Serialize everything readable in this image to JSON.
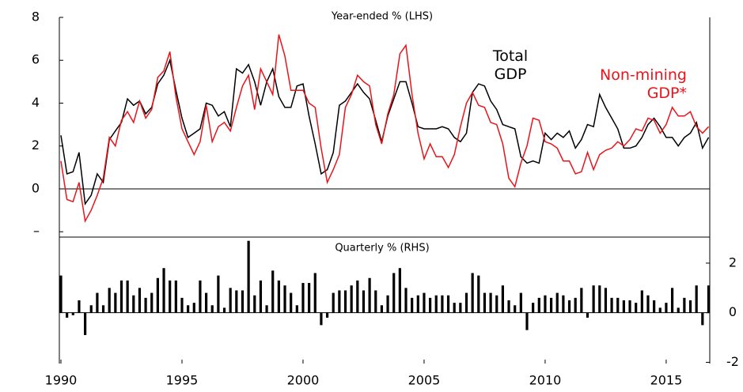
{
  "chart_data": [
    {
      "type": "line",
      "subtitle": "Year-ended % (LHS)",
      "x": [
        1990,
        1990.25,
        1990.5,
        1990.75,
        1991,
        1991.25,
        1991.5,
        1991.75,
        1992,
        1992.25,
        1992.5,
        1992.75,
        1993,
        1993.25,
        1993.5,
        1993.75,
        1994,
        1994.25,
        1994.5,
        1994.75,
        1995,
        1995.25,
        1995.5,
        1995.75,
        1996,
        1996.25,
        1996.5,
        1996.75,
        1997,
        1997.25,
        1997.5,
        1997.75,
        1998,
        1998.25,
        1998.5,
        1998.75,
        1999,
        1999.25,
        1999.5,
        1999.75,
        2000,
        2000.25,
        2000.5,
        2000.75,
        2001,
        2001.25,
        2001.5,
        2001.75,
        2002,
        2002.25,
        2002.5,
        2002.75,
        2003,
        2003.25,
        2003.5,
        2003.75,
        2004,
        2004.25,
        2004.5,
        2004.75,
        2005,
        2005.25,
        2005.5,
        2005.75,
        2006,
        2006.25,
        2006.5,
        2006.75,
        2007,
        2007.25,
        2007.5,
        2007.75,
        2008,
        2008.25,
        2008.5,
        2008.75,
        2009,
        2009.25,
        2009.5,
        2009.75,
        2010,
        2010.25,
        2010.5,
        2010.75,
        2011,
        2011.25,
        2011.5,
        2011.75,
        2012,
        2012.25,
        2012.5,
        2012.75,
        2013,
        2013.25,
        2013.5,
        2013.75,
        2014,
        2014.25,
        2014.5,
        2014.75,
        2015,
        2015.25,
        2015.5,
        2015.75,
        2016,
        2016.25,
        2016.5,
        2016.75
      ],
      "series": [
        {
          "name": "Total GDP",
          "color": "#000000",
          "values": [
            2.5,
            0.7,
            0.8,
            1.7,
            -0.7,
            -0.3,
            0.7,
            0.3,
            2.3,
            2.7,
            3.1,
            4.2,
            3.9,
            4.1,
            3.5,
            3.8,
            4.9,
            5.3,
            6.0,
            4.6,
            3.3,
            2.4,
            2.6,
            2.8,
            4.0,
            3.9,
            3.4,
            3.6,
            2.9,
            5.6,
            5.4,
            5.8,
            5.0,
            3.9,
            5.0,
            5.6,
            4.3,
            3.8,
            3.8,
            4.8,
            4.9,
            3.4,
            2.1,
            0.7,
            0.9,
            1.7,
            3.9,
            4.1,
            4.5,
            4.9,
            4.5,
            4.2,
            3.2,
            2.2,
            3.4,
            4.2,
            5.0,
            5.0,
            4.0,
            2.9,
            2.8,
            2.8,
            2.8,
            2.9,
            2.8,
            2.4,
            2.2,
            2.6,
            4.5,
            4.9,
            4.8,
            4.1,
            3.7,
            3.0,
            2.9,
            2.8,
            1.5,
            1.2,
            1.3,
            1.2,
            2.6,
            2.3,
            2.6,
            2.4,
            2.7,
            1.9,
            2.3,
            3.0,
            2.9,
            4.4,
            3.8,
            3.3,
            2.8,
            1.9,
            1.9,
            2.0,
            2.4,
            3.0,
            3.3,
            2.9,
            2.4,
            2.4,
            2.0,
            2.4,
            2.6,
            3.1,
            1.9,
            2.4
          ]
        },
        {
          "name": "Non-mining GDP*",
          "color": "#e8141b",
          "values": [
            1.3,
            -0.5,
            -0.6,
            0.3,
            -1.5,
            -1.0,
            -0.3,
            0.5,
            2.4,
            2.0,
            3.2,
            3.6,
            3.1,
            4.1,
            3.3,
            3.7,
            5.2,
            5.5,
            6.4,
            4.3,
            2.8,
            2.2,
            1.6,
            2.2,
            3.9,
            2.2,
            2.9,
            3.1,
            2.7,
            3.8,
            4.8,
            5.3,
            3.7,
            5.6,
            5.0,
            4.4,
            7.2,
            6.2,
            4.6,
            4.6,
            4.6,
            4.0,
            3.8,
            1.9,
            0.3,
            0.9,
            1.6,
            3.8,
            4.4,
            5.3,
            5.0,
            4.8,
            3.0,
            2.1,
            3.5,
            4.4,
            6.3,
            6.7,
            4.4,
            2.6,
            1.4,
            2.1,
            1.5,
            1.5,
            1.0,
            1.6,
            2.9,
            4.0,
            4.5,
            3.9,
            3.8,
            3.1,
            3.0,
            2.1,
            0.5,
            0.1,
            1.2,
            2.0,
            3.3,
            3.2,
            2.2,
            2.1,
            1.9,
            1.3,
            1.3,
            0.7,
            0.8,
            1.7,
            0.9,
            1.6,
            1.8,
            1.9,
            2.2,
            2.0,
            2.3,
            2.8,
            2.7,
            3.3,
            3.2,
            2.6,
            3.0,
            3.8,
            3.4,
            3.4,
            3.6,
            2.9,
            2.6,
            2.9
          ]
        }
      ],
      "xlim": [
        1990,
        2016.8
      ],
      "ylim": [
        -2.25,
        8
      ],
      "yticks": [
        {
          "value": -2,
          "label": "–"
        },
        0,
        2,
        4,
        6,
        8
      ]
    },
    {
      "type": "bar",
      "subtitle": "Quarterly % (RHS)",
      "x": [
        1990,
        1990.25,
        1990.5,
        1990.75,
        1991,
        1991.25,
        1991.5,
        1991.75,
        1992,
        1992.25,
        1992.5,
        1992.75,
        1993,
        1993.25,
        1993.5,
        1993.75,
        1994,
        1994.25,
        1994.5,
        1994.75,
        1995,
        1995.25,
        1995.5,
        1995.75,
        1996,
        1996.25,
        1996.5,
        1996.75,
        1997,
        1997.25,
        1997.5,
        1997.75,
        1998,
        1998.25,
        1998.5,
        1998.75,
        1999,
        1999.25,
        1999.5,
        1999.75,
        2000,
        2000.25,
        2000.5,
        2000.75,
        2001,
        2001.25,
        2001.5,
        2001.75,
        2002,
        2002.25,
        2002.5,
        2002.75,
        2003,
        2003.25,
        2003.5,
        2003.75,
        2004,
        2004.25,
        2004.5,
        2004.75,
        2005,
        2005.25,
        2005.5,
        2005.75,
        2006,
        2006.25,
        2006.5,
        2006.75,
        2007,
        2007.25,
        2007.5,
        2007.75,
        2008,
        2008.25,
        2008.5,
        2008.75,
        2009,
        2009.25,
        2009.5,
        2009.75,
        2010,
        2010.25,
        2010.5,
        2010.75,
        2011,
        2011.25,
        2011.5,
        2011.75,
        2012,
        2012.25,
        2012.5,
        2012.75,
        2013,
        2013.25,
        2013.5,
        2013.75,
        2014,
        2014.25,
        2014.5,
        2014.75,
        2015,
        2015.25,
        2015.5,
        2015.75,
        2016,
        2016.25,
        2016.5,
        2016.75
      ],
      "values": [
        1.5,
        -0.2,
        -0.1,
        0.5,
        -0.9,
        0.3,
        0.8,
        0.3,
        1.0,
        0.8,
        1.3,
        1.3,
        0.7,
        1.0,
        0.6,
        0.8,
        1.4,
        1.8,
        1.3,
        1.3,
        0.6,
        0.3,
        0.4,
        1.3,
        0.8,
        0.3,
        1.5,
        0.2,
        1.0,
        0.9,
        0.9,
        2.9,
        0.7,
        1.3,
        0.3,
        1.7,
        1.3,
        1.1,
        0.8,
        0.3,
        1.2,
        1.2,
        1.6,
        -0.5,
        -0.2,
        0.8,
        0.9,
        0.9,
        1.1,
        1.3,
        0.9,
        1.4,
        0.9,
        0.3,
        0.7,
        1.6,
        1.8,
        1.0,
        0.6,
        0.7,
        0.8,
        0.6,
        0.7,
        0.7,
        0.7,
        0.4,
        0.4,
        0.8,
        1.6,
        1.5,
        0.8,
        0.8,
        0.7,
        1.1,
        0.5,
        0.3,
        0.8,
        -0.7,
        0.4,
        0.6,
        0.7,
        0.6,
        0.8,
        0.7,
        0.5,
        0.6,
        1.0,
        -0.2,
        1.1,
        1.1,
        1.0,
        0.6,
        0.6,
        0.5,
        0.5,
        0.4,
        0.9,
        0.7,
        0.5,
        0.2,
        0.4,
        1.0,
        0.2,
        0.6,
        0.5,
        1.1,
        -0.5,
        1.1
      ],
      "color": "#000000",
      "xlim": [
        1990,
        2016.8
      ],
      "xticks": [
        1990,
        1995,
        2000,
        2005,
        2010,
        2015
      ],
      "y2lim": [
        -2.05,
        3.05
      ],
      "y2ticks": [
        -2,
        0,
        2
      ]
    }
  ]
}
